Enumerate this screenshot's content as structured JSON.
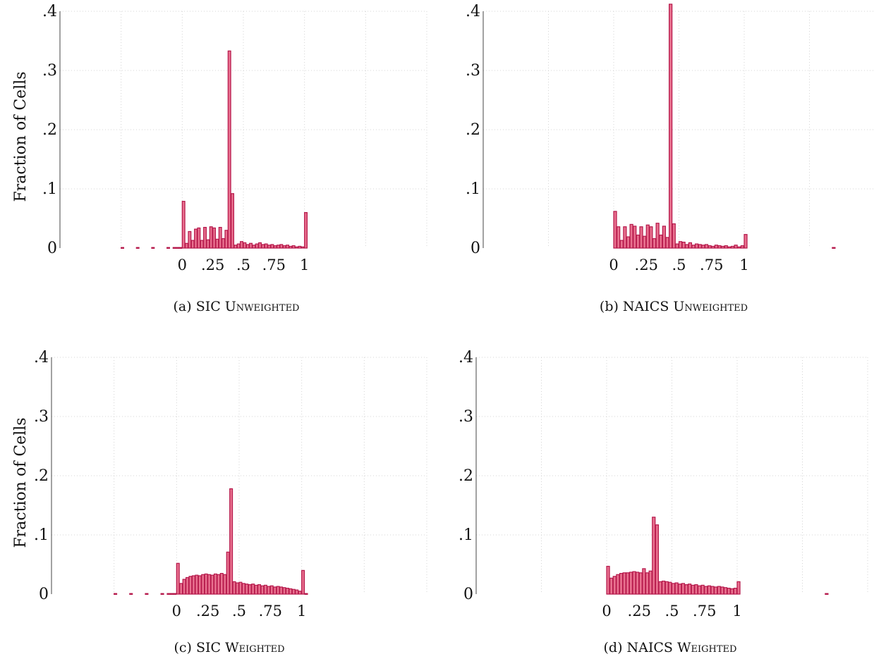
{
  "chart_data": [
    {
      "type": "bar",
      "caption_prefix": "(a) SIC ",
      "caption_sc": "Unweighted",
      "ylabel": "Fraction of Cells",
      "ylim": [
        0,
        0.4
      ],
      "xlim": [
        -1.0,
        2.0
      ],
      "yticks": [
        "0",
        ".1",
        ".2",
        ".3",
        ".4"
      ],
      "yticks_values": [
        0,
        0.1,
        0.2,
        0.3,
        0.4
      ],
      "xticks": [
        "0",
        ".25",
        ".5",
        ".75",
        "1"
      ],
      "xticks_values": [
        0,
        0.25,
        0.5,
        0.75,
        1
      ],
      "grid": true,
      "bin_width": 0.025,
      "bars_x": [
        -0.5,
        -0.375,
        -0.25,
        -0.125,
        -0.075,
        -0.05,
        -0.025,
        0,
        0.025,
        0.05,
        0.075,
        0.1,
        0.125,
        0.15,
        0.175,
        0.2,
        0.225,
        0.25,
        0.275,
        0.3,
        0.325,
        0.35,
        0.375,
        0.4,
        0.425,
        0.45,
        0.475,
        0.5,
        0.525,
        0.55,
        0.575,
        0.6,
        0.625,
        0.65,
        0.675,
        0.7,
        0.725,
        0.75,
        0.775,
        0.8,
        0.825,
        0.85,
        0.875,
        0.9,
        0.925,
        0.95,
        0.975,
        1.0
      ],
      "values": [
        0.001,
        0.001,
        0.001,
        0.001,
        0.001,
        0.001,
        0.001,
        0.079,
        0.008,
        0.028,
        0.013,
        0.032,
        0.034,
        0.013,
        0.035,
        0.014,
        0.036,
        0.034,
        0.015,
        0.035,
        0.016,
        0.03,
        0.333,
        0.092,
        0.005,
        0.007,
        0.011,
        0.009,
        0.006,
        0.008,
        0.005,
        0.007,
        0.009,
        0.006,
        0.007,
        0.005,
        0.006,
        0.004,
        0.005,
        0.006,
        0.004,
        0.005,
        0.003,
        0.004,
        0.002,
        0.003,
        0.002,
        0.06
      ]
    },
    {
      "type": "bar",
      "caption_prefix": "(b) NAICS ",
      "caption_sc": "Unweighted",
      "ylabel": "",
      "ylim": [
        0,
        0.4
      ],
      "xlim": [
        -1.0,
        2.0
      ],
      "yticks": [
        "0",
        ".1",
        ".2",
        ".3",
        ".4"
      ],
      "yticks_values": [
        0,
        0.1,
        0.2,
        0.3,
        0.4
      ],
      "xticks": [
        "0",
        ".25",
        ".5",
        ".75",
        "1"
      ],
      "xticks_values": [
        0,
        0.25,
        0.5,
        0.75,
        1
      ],
      "grid": true,
      "bin_width": 0.025,
      "bars_x": [
        0,
        0.025,
        0.05,
        0.075,
        0.1,
        0.125,
        0.15,
        0.175,
        0.2,
        0.225,
        0.25,
        0.275,
        0.3,
        0.325,
        0.35,
        0.375,
        0.4,
        0.425,
        0.45,
        0.475,
        0.5,
        0.525,
        0.55,
        0.575,
        0.6,
        0.625,
        0.65,
        0.675,
        0.7,
        0.725,
        0.75,
        0.775,
        0.8,
        0.825,
        0.85,
        0.875,
        0.9,
        0.925,
        0.95,
        0.975,
        1.0,
        1.675
      ],
      "values": [
        0.062,
        0.036,
        0.013,
        0.036,
        0.019,
        0.04,
        0.037,
        0.022,
        0.036,
        0.02,
        0.039,
        0.036,
        0.016,
        0.042,
        0.022,
        0.037,
        0.018,
        0.412,
        0.041,
        0.007,
        0.011,
        0.01,
        0.006,
        0.009,
        0.005,
        0.007,
        0.006,
        0.005,
        0.006,
        0.004,
        0.003,
        0.005,
        0.004,
        0.003,
        0.004,
        0.002,
        0.003,
        0.005,
        0.002,
        0.004,
        0.023,
        0.001
      ]
    },
    {
      "type": "bar",
      "caption_prefix": "(c) SIC ",
      "caption_sc": "Weighted",
      "ylabel": "Fraction of Cells",
      "ylim": [
        0,
        0.4
      ],
      "xlim": [
        -1.0,
        2.0
      ],
      "yticks": [
        "0",
        ".1",
        ".2",
        ".3",
        ".4"
      ],
      "yticks_values": [
        0,
        0.1,
        0.2,
        0.3,
        0.4
      ],
      "xticks": [
        "0",
        ".25",
        ".5",
        ".75",
        "1"
      ],
      "xticks_values": [
        0,
        0.25,
        0.5,
        0.75,
        1
      ],
      "grid": true,
      "bin_width": 0.025,
      "bars_x": [
        -0.5,
        -0.375,
        -0.25,
        -0.125,
        -0.075,
        -0.05,
        -0.025,
        0,
        0.025,
        0.05,
        0.075,
        0.1,
        0.125,
        0.15,
        0.175,
        0.2,
        0.225,
        0.25,
        0.275,
        0.3,
        0.325,
        0.35,
        0.375,
        0.4,
        0.425,
        0.45,
        0.475,
        0.5,
        0.525,
        0.55,
        0.575,
        0.6,
        0.625,
        0.65,
        0.675,
        0.7,
        0.725,
        0.75,
        0.775,
        0.8,
        0.825,
        0.85,
        0.875,
        0.9,
        0.925,
        0.95,
        0.975,
        1.0,
        1.025
      ],
      "values": [
        0.001,
        0.001,
        0.001,
        0.001,
        0.001,
        0.001,
        0.001,
        0.052,
        0.018,
        0.025,
        0.028,
        0.03,
        0.031,
        0.032,
        0.031,
        0.033,
        0.034,
        0.033,
        0.032,
        0.034,
        0.033,
        0.035,
        0.033,
        0.071,
        0.178,
        0.021,
        0.019,
        0.02,
        0.018,
        0.017,
        0.016,
        0.017,
        0.015,
        0.016,
        0.014,
        0.015,
        0.013,
        0.014,
        0.012,
        0.013,
        0.012,
        0.011,
        0.01,
        0.009,
        0.008,
        0.007,
        0.005,
        0.04,
        0.001
      ]
    },
    {
      "type": "bar",
      "caption_prefix": "(d) NAICS ",
      "caption_sc": "Weighted",
      "ylabel": "",
      "ylim": [
        0,
        0.4
      ],
      "xlim": [
        -1.0,
        2.0
      ],
      "yticks": [
        "0",
        ".1",
        ".2",
        ".3",
        ".4"
      ],
      "yticks_values": [
        0,
        0.1,
        0.2,
        0.3,
        0.4
      ],
      "xticks": [
        "0",
        ".25",
        ".5",
        ".75",
        "1"
      ],
      "xticks_values": [
        0,
        0.25,
        0.5,
        0.75,
        1
      ],
      "grid": true,
      "bin_width": 0.025,
      "bars_x": [
        0,
        0.025,
        0.05,
        0.075,
        0.1,
        0.125,
        0.15,
        0.175,
        0.2,
        0.225,
        0.25,
        0.275,
        0.3,
        0.325,
        0.35,
        0.375,
        0.4,
        0.425,
        0.45,
        0.475,
        0.5,
        0.525,
        0.55,
        0.575,
        0.6,
        0.625,
        0.65,
        0.675,
        0.7,
        0.725,
        0.75,
        0.775,
        0.8,
        0.825,
        0.85,
        0.875,
        0.9,
        0.925,
        0.95,
        0.975,
        1.0,
        1.675
      ],
      "values": [
        0.047,
        0.027,
        0.03,
        0.033,
        0.035,
        0.036,
        0.036,
        0.037,
        0.038,
        0.037,
        0.036,
        0.043,
        0.036,
        0.039,
        0.13,
        0.117,
        0.021,
        0.022,
        0.021,
        0.02,
        0.018,
        0.019,
        0.017,
        0.018,
        0.016,
        0.017,
        0.015,
        0.016,
        0.014,
        0.015,
        0.013,
        0.014,
        0.013,
        0.012,
        0.013,
        0.012,
        0.011,
        0.01,
        0.009,
        0.01,
        0.021,
        0.001
      ]
    }
  ],
  "colors": {
    "bar_fill": "#e8708e",
    "bar_stroke": "#b5174a"
  }
}
